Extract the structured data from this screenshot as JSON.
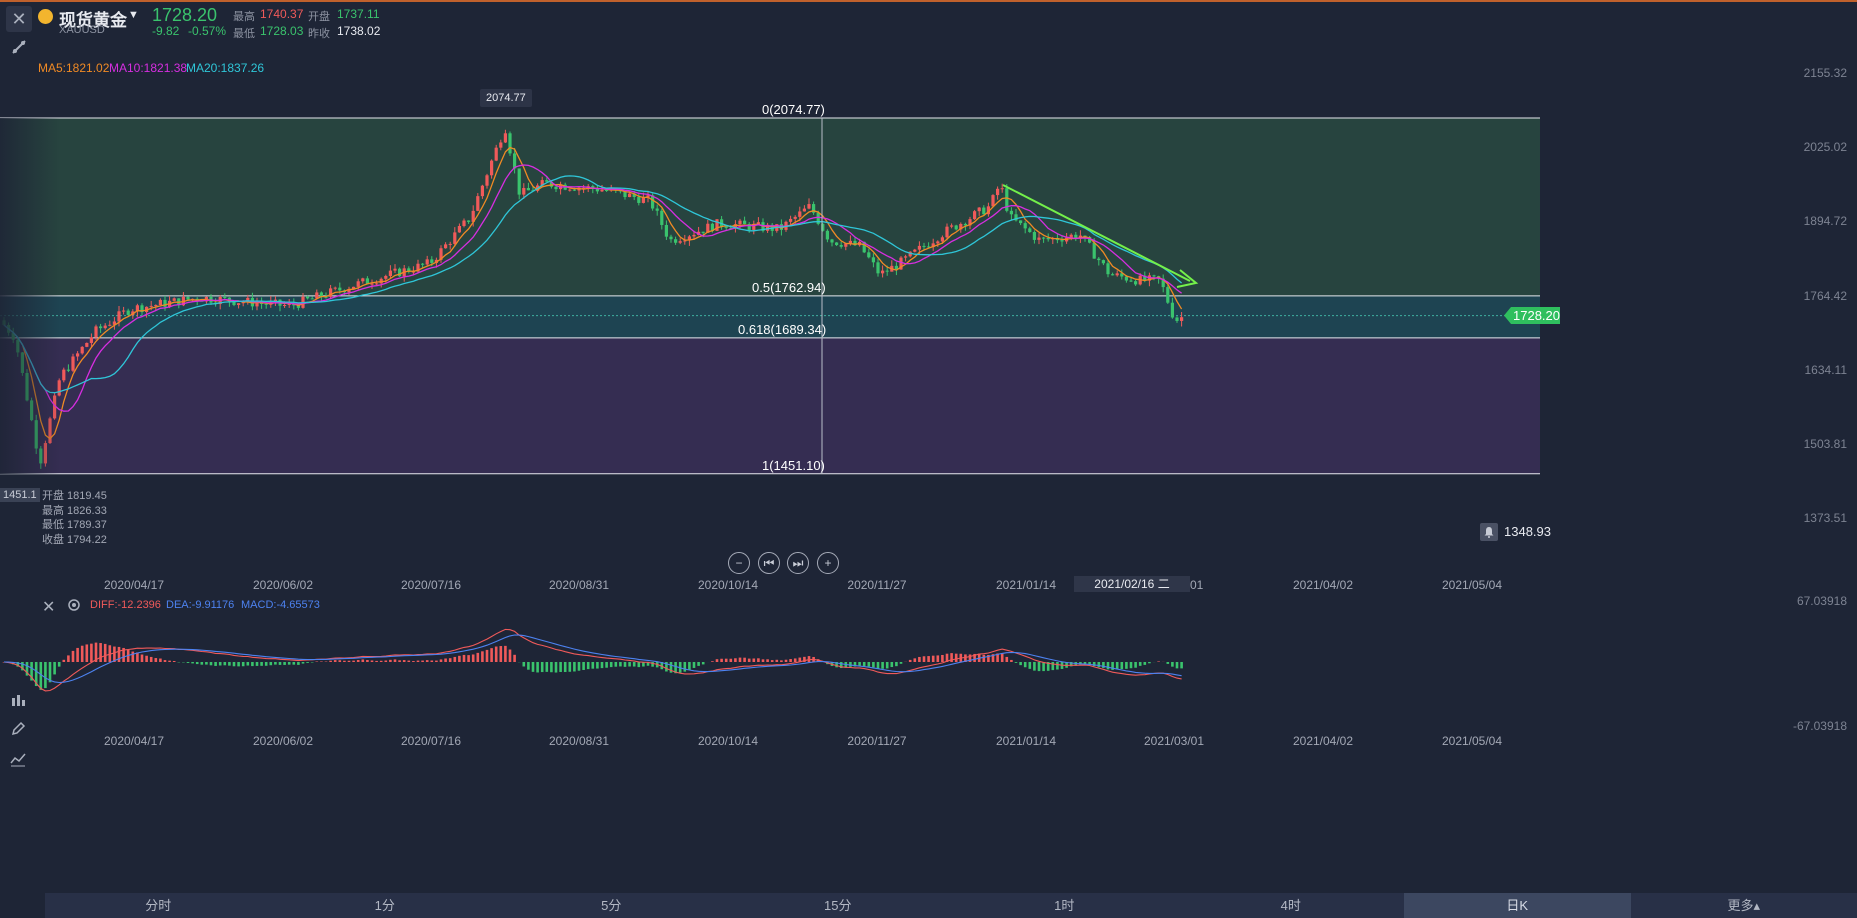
{
  "header": {
    "name": "现货黄金",
    "code": "XAUUSD",
    "price": "1728.20",
    "change": "-9.82",
    "change_pct": "-0.57%",
    "high_label": "最高",
    "high": "1740.37",
    "open_label": "开盘",
    "open": "1737.11",
    "low_label": "最低",
    "low": "1728.03",
    "prev_close_label": "昨收",
    "prev_close": "1738.02"
  },
  "ma": {
    "ma5": "MA5:1821.02",
    "ma10": "MA10:1821.38",
    "ma20": "MA20:1837.26"
  },
  "y_axis": [
    "2155.32",
    "2025.02",
    "1894.72",
    "1764.42",
    "1634.11",
    "1503.81",
    "1373.51"
  ],
  "fib": {
    "f0": "0(2074.77)",
    "f05": "0.5(1762.94)",
    "f0618": "0.618(1689.34)",
    "f1": "1(1451.10)"
  },
  "peak_tag": "2074.77",
  "current_price_tag": "1728.20",
  "bell_value": "1348.93",
  "left_cut_label": "1451.1",
  "ohlc_tooltip": {
    "open": "开盘 1819.45",
    "high": "最高 1826.33",
    "low": "最低 1789.37",
    "close": "收盘 1794.22"
  },
  "x_axis": [
    "2020/04/17",
    "2020/06/02",
    "2020/07/16",
    "2020/08/31",
    "2020/10/14",
    "2020/11/27",
    "2021/01/14",
    "2021/02/16 二",
    "2021/04/02",
    "2021/05/04"
  ],
  "x_axis_cut": "01",
  "x_axis_bottom": [
    "2020/04/17",
    "2020/06/02",
    "2020/07/16",
    "2020/08/31",
    "2020/10/14",
    "2020/11/27",
    "2021/01/14",
    "2021/03/01",
    "2021/04/02",
    "2021/05/04"
  ],
  "macd": {
    "diff": "DIFF:-12.2396",
    "dea": "DEA:-9.91176",
    "macd": "MACD:-4.65573",
    "top": "67.03918",
    "bottom": "-67.03918"
  },
  "tabs": [
    "分时",
    "1分",
    "5分",
    "15分",
    "1时",
    "4时",
    "日K",
    "更多▴"
  ],
  "active_tab": "日K",
  "colors": {
    "up": "#f05a5a",
    "down": "#3ac36d",
    "ma5": "#f08a24",
    "ma10": "#d62ee0",
    "ma20": "#2fc6d8",
    "fib_upper": "#27443f",
    "fib_mid": "#1e4452",
    "fib_lower": "#352d52"
  }
}
